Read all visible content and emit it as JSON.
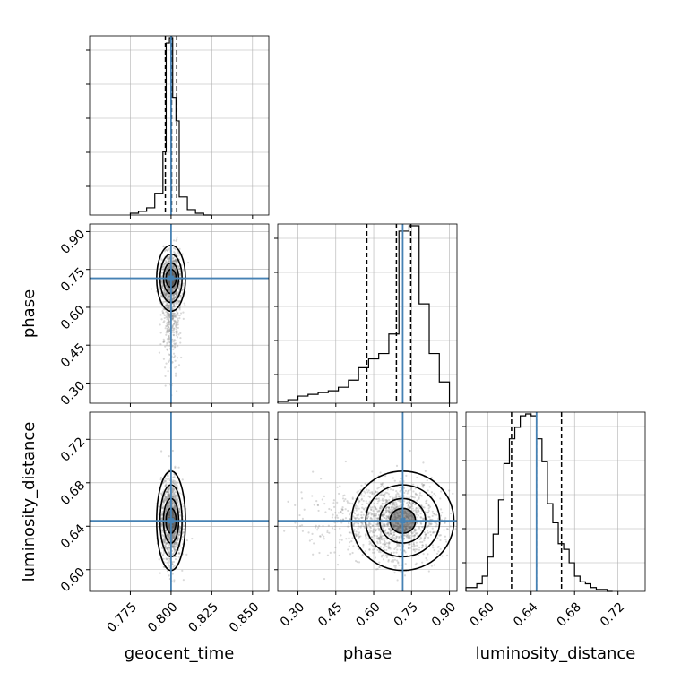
{
  "chart_data": {
    "type": "corner",
    "parameters": [
      {
        "key": "geocent_time",
        "label": "geocent_time",
        "range": [
          0.75,
          0.86
        ],
        "ticks": [
          0.775,
          0.8,
          0.825,
          0.85
        ],
        "tick_labels": [
          "0.775",
          "0.800",
          "0.825",
          "0.850"
        ],
        "truth": 0.8,
        "quantiles": [
          0.7965,
          0.8003,
          0.8035
        ]
      },
      {
        "key": "phase",
        "label": "phase",
        "range": [
          0.22,
          0.93
        ],
        "ticks": [
          0.3,
          0.45,
          0.6,
          0.75,
          0.9
        ],
        "tick_labels": [
          "0.30",
          "0.45",
          "0.60",
          "0.75",
          "0.90"
        ],
        "truth": 0.715,
        "quantiles": [
          0.573,
          0.69,
          0.747
        ]
      },
      {
        "key": "luminosity_distance",
        "label": "luminosity_distance",
        "range": [
          0.58,
          0.745
        ],
        "ticks": [
          0.6,
          0.64,
          0.68,
          0.72
        ],
        "tick_labels": [
          "0.60",
          "0.64",
          "0.68",
          "0.72"
        ],
        "truth": 0.645,
        "quantiles": [
          0.622,
          0.645,
          0.668
        ]
      }
    ],
    "histograms": {
      "geocent_time": {
        "edges": [
          0.775,
          0.78,
          0.785,
          0.79,
          0.795,
          0.797,
          0.799,
          0.801,
          0.803,
          0.805,
          0.81,
          0.815,
          0.82,
          0.825
        ],
        "counts": [
          1,
          2,
          4,
          12,
          35,
          95,
          98,
          65,
          52,
          10,
          3,
          1,
          0
        ]
      },
      "phase": {
        "edges": [
          0.22,
          0.26,
          0.3,
          0.34,
          0.38,
          0.42,
          0.46,
          0.5,
          0.54,
          0.58,
          0.62,
          0.66,
          0.7,
          0.74,
          0.78,
          0.82,
          0.86,
          0.9
        ],
        "counts": [
          1,
          2,
          4,
          5,
          6,
          7,
          9,
          13,
          20,
          25,
          28,
          39,
          97,
          100,
          56,
          28,
          12
        ]
      },
      "luminosity_distance": {
        "edges": [
          0.58,
          0.59,
          0.595,
          0.6,
          0.605,
          0.61,
          0.615,
          0.62,
          0.625,
          0.63,
          0.635,
          0.64,
          0.645,
          0.65,
          0.655,
          0.66,
          0.665,
          0.67,
          0.675,
          0.68,
          0.685,
          0.69,
          0.695,
          0.7,
          0.705,
          0.71,
          0.715
        ],
        "counts": [
          2,
          4,
          8,
          18,
          30,
          48,
          67,
          80,
          86,
          92,
          93,
          92,
          80,
          68,
          46,
          36,
          25,
          22,
          15,
          8,
          5,
          4,
          2,
          1,
          1,
          0
        ]
      }
    },
    "joint": [
      {
        "x": "geocent_time",
        "y": "phase",
        "center": [
          0.8,
          0.715
        ],
        "spread": [
          0.003,
          0.05
        ]
      },
      {
        "x": "geocent_time",
        "y": "luminosity_distance",
        "center": [
          0.8,
          0.645
        ],
        "spread": [
          0.003,
          0.018
        ]
      },
      {
        "x": "phase",
        "y": "luminosity_distance",
        "center": [
          0.715,
          0.645
        ],
        "spread": [
          0.08,
          0.018
        ]
      }
    ],
    "colors": {
      "truth": "#4682b4",
      "hist": "#000000",
      "contour": "#000000",
      "scatter": "#808080",
      "grid": "#b0b0b0"
    },
    "grid": true
  }
}
